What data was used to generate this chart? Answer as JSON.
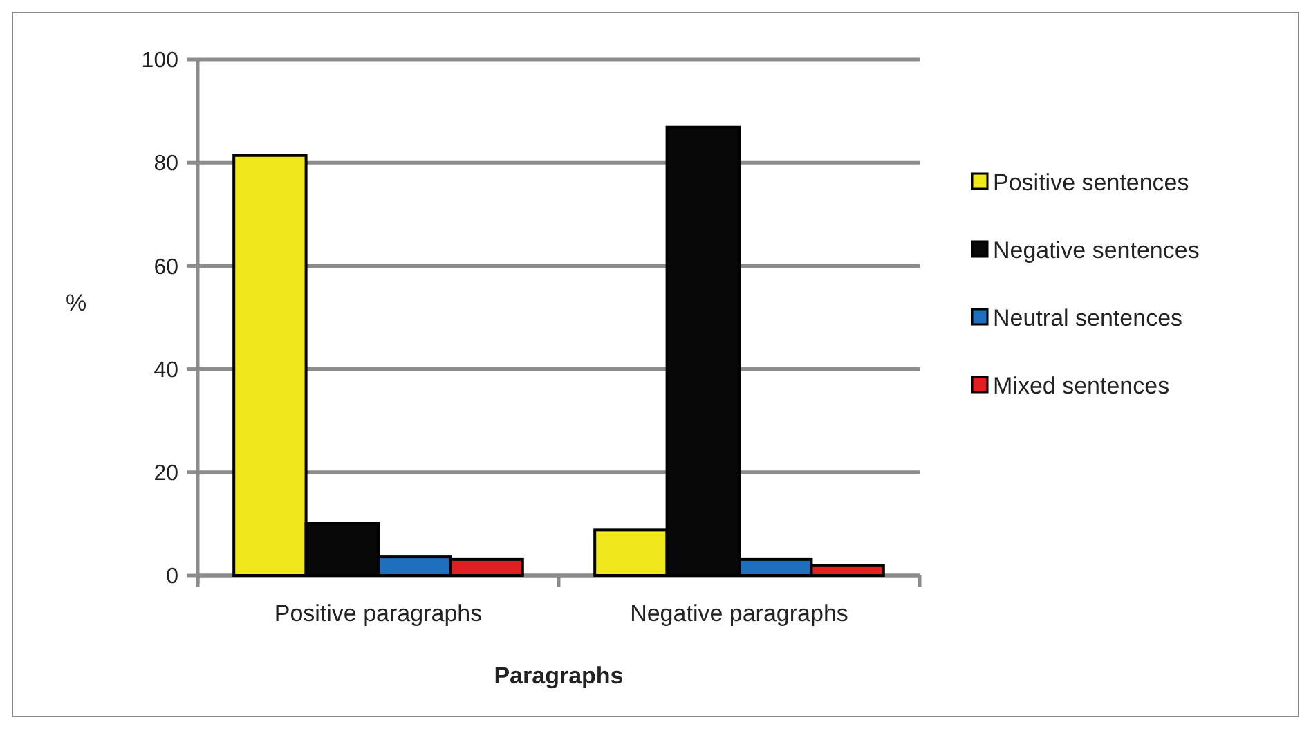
{
  "chart_data": {
    "type": "bar",
    "xlabel": "Paragraphs",
    "ylabel": "%",
    "categories": [
      "Positive paragraphs",
      "Negative paragraphs"
    ],
    "series": [
      {
        "name": "Positive sentences",
        "color": "#f0e81a",
        "values": [
          81.4,
          8.8
        ]
      },
      {
        "name": "Negative sentences",
        "color": "#080808",
        "values": [
          10.1,
          86.9
        ]
      },
      {
        "name": "Neutral sentences",
        "color": "#1f6fbf",
        "values": [
          3.6,
          3.1
        ]
      },
      {
        "name": "Mixed sentences",
        "color": "#e02020",
        "values": [
          3.1,
          1.9
        ]
      }
    ],
    "ylim": [
      0,
      100
    ],
    "yticks": [
      0,
      20,
      40,
      60,
      80,
      100
    ],
    "grid": "y",
    "legend": "right"
  }
}
